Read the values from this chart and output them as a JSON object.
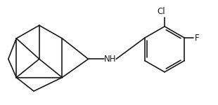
{
  "background": "#ffffff",
  "line_color": "#1a1a1a",
  "line_width": 1.2,
  "font_size": 8.5,
  "cl_label": "Cl",
  "f_label": "F",
  "nh_label": "NH",
  "figsize": [
    3.1,
    1.5
  ],
  "dpi": 100,
  "xlim": [
    0,
    10.0
  ],
  "ylim": [
    0,
    4.8
  ]
}
